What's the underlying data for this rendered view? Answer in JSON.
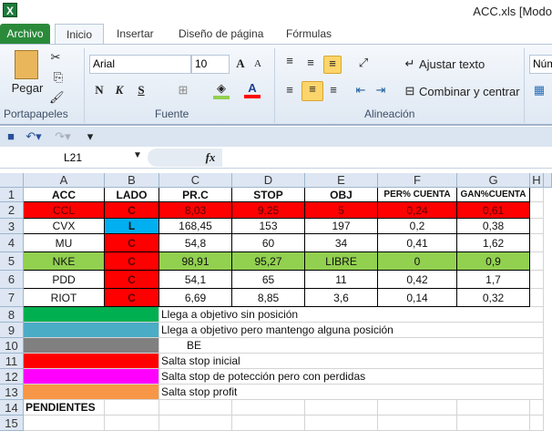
{
  "window": {
    "title": "ACC.xls  [Modo",
    "app_icon": "excel-icon"
  },
  "tabs": [
    "Archivo",
    "Inicio",
    "Insertar",
    "Diseño de página",
    "Fórmulas"
  ],
  "ribbon": {
    "clipboard": {
      "label": "Portapapeles",
      "paste": "Pegar"
    },
    "font": {
      "label": "Fuente",
      "family": "Arial",
      "size": "10",
      "bold": "N",
      "italic": "K",
      "underline": "S",
      "fill_color": "#92d050",
      "font_color": "#ff0000"
    },
    "alignment": {
      "label": "Alineación",
      "wrap": "Ajustar texto",
      "merge": "Combinar y centrar"
    },
    "number": {
      "format": "Núm"
    }
  },
  "formula_bar": {
    "name_box": "L21",
    "fx": "fx",
    "value": ""
  },
  "columns": [
    "A",
    "B",
    "C",
    "D",
    "E",
    "F",
    "G",
    "H"
  ],
  "rows": [
    {
      "n": "1",
      "cells": [
        "ACC",
        "LADO",
        "PR.C",
        "STOP",
        "OBJ",
        "PER% CUENTA",
        "GAN%CUENTA"
      ],
      "bold": true
    },
    {
      "n": "2",
      "cells": [
        "CCL",
        "C",
        "8,03",
        "9,25",
        "5",
        "0,24",
        "0,61"
      ],
      "fills": [
        "#ff0000",
        "#ff0000",
        "#ff0000",
        "#ff0000",
        "#ff0000",
        "#ff0000",
        "#ff0000"
      ]
    },
    {
      "n": "3",
      "cells": [
        "CVX",
        "L",
        "168,45",
        "153",
        "197",
        "0,2",
        "0,38"
      ],
      "fills": [
        "",
        "#00b0f0",
        "",
        "",
        "",
        "",
        ""
      ]
    },
    {
      "n": "4",
      "cells": [
        "MU",
        "C",
        "54,8",
        "60",
        "34",
        "0,41",
        "1,62"
      ],
      "fills": [
        "",
        "#ff0000",
        "",
        "",
        "",
        "",
        ""
      ]
    },
    {
      "n": "5",
      "cells": [
        "NKE",
        "C",
        "98,91",
        "95,27",
        "LIBRE",
        "0",
        "0,9"
      ],
      "fills": [
        "#92d050",
        "#ff0000",
        "#92d050",
        "#92d050",
        "#92d050",
        "#92d050",
        "#92d050"
      ]
    },
    {
      "n": "6",
      "cells": [
        "PDD",
        "C",
        "54,1",
        "65",
        "11",
        "0,42",
        "1,7"
      ],
      "fills": [
        "",
        "#ff0000",
        "",
        "",
        "",
        "",
        ""
      ]
    },
    {
      "n": "7",
      "cells": [
        "RIOT",
        "C",
        "6,69",
        "8,85",
        "3,6",
        "0,14",
        "0,32"
      ],
      "fills": [
        "",
        "#ff0000",
        "",
        "",
        "",
        "",
        ""
      ]
    }
  ],
  "legend": [
    {
      "n": "8",
      "color": "#00b050",
      "text": "Llega a objetivo sin posición"
    },
    {
      "n": "9",
      "color": "#4bacc6",
      "text": "Llega a objetivo pero mantengo alguna posición"
    },
    {
      "n": "10",
      "color": "#808080",
      "text": "BE"
    },
    {
      "n": "11",
      "color": "#ff0000",
      "text": "Salta stop inicial"
    },
    {
      "n": "12",
      "color": "#ff00ff",
      "text": "Salta stop de potección pero con perdidas"
    },
    {
      "n": "13",
      "color": "#f79646",
      "text": "Salta stop profit"
    }
  ],
  "pending": {
    "n": "14",
    "text": "PENDIENTES"
  },
  "extra_row": "15"
}
